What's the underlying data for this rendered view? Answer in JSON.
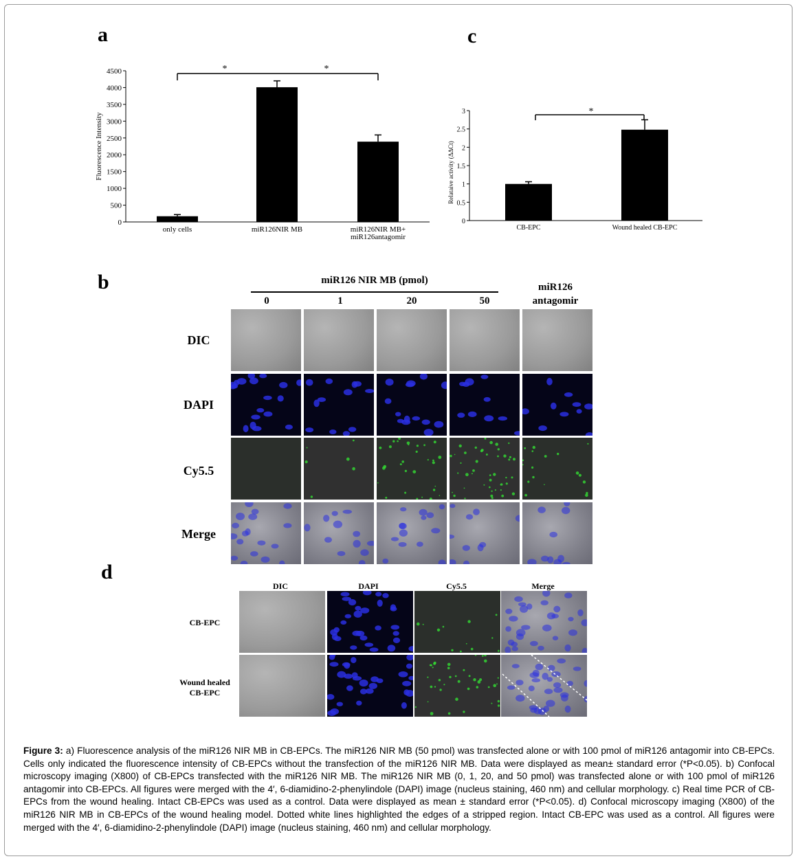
{
  "panels": {
    "a": "a",
    "b": "b",
    "c": "c",
    "d": "d"
  },
  "chart_data": [
    {
      "type": "bar",
      "panel": "a",
      "categories": [
        "only cells",
        "miR126NIR MB",
        "miR126NIR MB+\nmiR126antagomir"
      ],
      "values": [
        170,
        4010,
        2390
      ],
      "errors": [
        50,
        190,
        200
      ],
      "ylabel": "Fluorescence Intensity",
      "ylim": [
        0,
        4500
      ],
      "yticks": [
        0,
        500,
        1000,
        1500,
        2000,
        2500,
        3000,
        3500,
        4000,
        4500
      ],
      "significance": [
        "*",
        "*"
      ],
      "bar_color": "#000000"
    },
    {
      "type": "bar",
      "panel": "c",
      "categories": [
        "CB-EPC",
        "Wound healed CB-EPC"
      ],
      "values": [
        1.0,
        2.48
      ],
      "errors": [
        0.06,
        0.27
      ],
      "ylabel": "Relataive activity (ΔΔCt)",
      "ylim": [
        0,
        3
      ],
      "yticks": [
        "0",
        "0.5",
        "1",
        "1.5",
        "2",
        "2.5",
        "3"
      ],
      "significance": [
        "*"
      ],
      "bar_color": "#000000"
    }
  ],
  "panel_b": {
    "header_group": "miR126 NIR MB (pmol)",
    "columns": [
      "0",
      "1",
      "20",
      "50"
    ],
    "antagomir_header": [
      "miR126",
      "antagomir"
    ],
    "rows": [
      "DIC",
      "DAPI",
      "Cy5.5",
      "Merge"
    ]
  },
  "panel_d": {
    "columns": [
      "DIC",
      "DAPI",
      "Cy5.5",
      "Merge"
    ],
    "rows": [
      [
        "CB-EPC"
      ],
      [
        "Wound healed",
        "CB-EPC"
      ]
    ]
  },
  "caption": {
    "label": "Figure 3:",
    "text": " a) Fluorescence analysis of the miR126 NIR MB in CB-EPCs. The miR126 NIR MB (50 pmol) was transfected alone or with 100 pmol of miR126 antagomir into CB-EPCs. Cells only indicated the fluorescence intensity of CB-EPCs without the transfection of the miR126 NIR MB. Data were displayed as mean± standard error (*P<0.05). b) Confocal microscopy imaging (X800) of CB-EPCs transfected with the miR126 NIR MB. The miR126 NIR MB (0, 1, 20, and 50 pmol) was transfected alone or with 100 pmol of miR126 antagomir into CB-EPCs. All figures were merged with the 4′, 6-diamidino-2-phenylindole (DAPI) image (nucleus staining, 460 nm) and cellular morphology. c) Real time PCR of CB-EPCs from the wound healing. Intact CB-EPCs was used as a control. Data were displayed as mean ± standard error (*P<0.05). d) Confocal microscopy imaging (X800) of the miR126 NIR MB in CB-EPCs of the wound healing model. Dotted white lines highlighted the edges of a stripped region. Intact CB-EPC was used as a control. All figures were merged with the 4′, 6-diamidino-2-phenylindole (DAPI) image (nucleus staining, 460 nm) and cellular morphology."
  },
  "colors": {
    "dic": "#9a9a9a",
    "dapi_bg": "#050518",
    "nucleus": "#2a2fe0",
    "cy5_bg": "#303030",
    "cy5_dot": "#33dd33"
  }
}
